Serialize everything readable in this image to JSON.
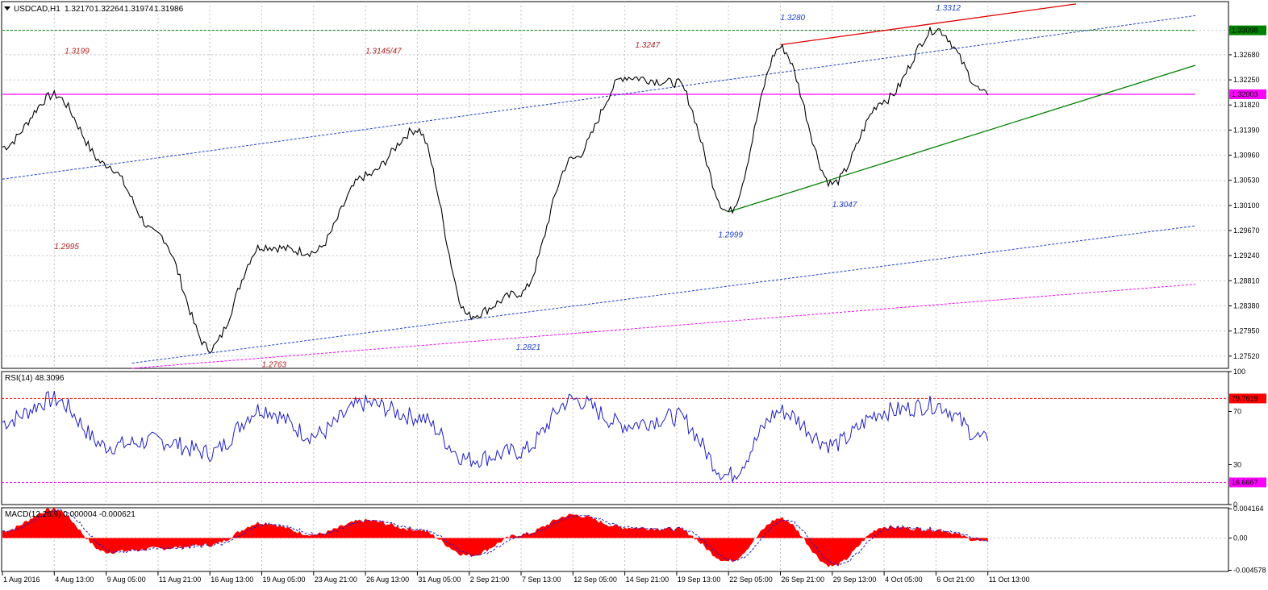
{
  "chart_data": [
    {
      "type": "line",
      "title": "USDCAD,H1  1.32170 1.32264 1.31974 1.31986",
      "symbol": "USDCAD,H1",
      "ohlc": [
        "1.32170",
        "1.32264",
        "1.31974",
        "1.31986"
      ],
      "ylim": [
        1.2731,
        1.3359
      ],
      "y_ticks": [
        "1.33098",
        "1.32680",
        "1.32250",
        "1.31820",
        "1.31390",
        "1.30960",
        "1.30530",
        "1.30100",
        "1.29670",
        "1.29240",
        "1.28810",
        "1.28380",
        "1.27950",
        "1.27520"
      ],
      "current_price": "1.32003",
      "marked_level": "1.33098",
      "grid": true,
      "x_dates": [
        "1 Aug 2016",
        "4 Aug 13:00",
        "9 Aug 05:00",
        "11 Aug 21:00",
        "16 Aug 13:00",
        "19 Aug 05:00",
        "23 Aug 21:00",
        "26 Aug 13:00",
        "31 Aug 05:00",
        "2 Sep 21:00",
        "7 Sep 13:00",
        "12 Sep 05:00",
        "14 Sep 21:00",
        "19 Sep 13:00",
        "22 Sep 05:00",
        "26 Sep 21:00",
        "29 Sep 13:00",
        "4 Oct 05:00",
        "6 Oct 21:00",
        "11 Oct 13:00"
      ],
      "price_series": {
        "x": [
          0,
          1,
          2,
          3,
          4,
          5,
          6,
          7,
          8,
          9,
          10,
          11,
          12,
          13,
          14,
          15,
          16,
          17,
          18,
          19
        ],
        "values": [
          1.311,
          1.3199,
          1.308,
          1.296,
          1.2765,
          1.294,
          1.293,
          1.306,
          1.314,
          1.2821,
          1.286,
          1.309,
          1.323,
          1.322,
          1.2999,
          1.328,
          1.3047,
          1.319,
          1.3312,
          1.3199
        ]
      },
      "annotations": [
        {
          "text": "1.3199",
          "x": 1.2,
          "y": 1.327,
          "color": "#b22222",
          "italic": false
        },
        {
          "text": "1.3145/47",
          "x": 7.0,
          "y": 1.327,
          "color": "#b22222",
          "italic": false
        },
        {
          "text": "1.3247",
          "x": 12.2,
          "y": 1.328,
          "color": "#b22222",
          "italic": true
        },
        {
          "text": "1.3280",
          "x": 15.0,
          "y": 1.3327,
          "color": "#1e3fc8",
          "italic": true
        },
        {
          "text": "1.3312",
          "x": 18.0,
          "y": 1.3344,
          "color": "#1e3fc8",
          "italic": true
        },
        {
          "text": "1.2995",
          "x": 1.0,
          "y": 1.2935,
          "color": "#b22222",
          "italic": false
        },
        {
          "text": "1.2999",
          "x": 13.8,
          "y": 1.2955,
          "color": "#1e3fc8",
          "italic": false
        },
        {
          "text": "1.3047",
          "x": 16.0,
          "y": 1.3007,
          "color": "#1e3fc8",
          "italic": false
        },
        {
          "text": "1.2821",
          "x": 9.9,
          "y": 1.2763,
          "color": "#1e3fc8",
          "italic": true
        },
        {
          "text": "1.2763",
          "x": 5.0,
          "y": 1.2733,
          "color": "#b22222",
          "italic": true
        }
      ],
      "lines": [
        {
          "name": "horizontal-support",
          "points": [
            [
              0,
              1.32003
            ],
            [
              23,
              1.32003
            ]
          ],
          "color": "#ff00ff",
          "style": "solid"
        },
        {
          "name": "resistance-level",
          "points": [
            [
              0,
              1.33098
            ],
            [
              23,
              1.33098
            ]
          ],
          "color": "#008000",
          "style": "dotted"
        },
        {
          "name": "channel-upper",
          "points": [
            [
              0,
              1.3055
            ],
            [
              23,
              1.3335
            ]
          ],
          "color": "#1e3fc8",
          "style": "dotted"
        },
        {
          "name": "channel-lower",
          "points": [
            [
              2.5,
              1.274
            ],
            [
              23,
              1.2975
            ]
          ],
          "color": "#1e3fc8",
          "style": "dotted"
        },
        {
          "name": "magenta-lower",
          "points": [
            [
              2.5,
              1.2731
            ],
            [
              23,
              1.2875
            ]
          ],
          "color": "#ff00ff",
          "style": "dotted"
        },
        {
          "name": "red-upper-trend",
          "points": [
            [
              15.0,
              1.3285
            ],
            [
              20.7,
              1.3355
            ]
          ],
          "color": "#e00000",
          "style": "solid"
        },
        {
          "name": "green-support-trend",
          "points": [
            [
              14.0,
              1.2999
            ],
            [
              23,
              1.325
            ]
          ],
          "color": "#008000",
          "style": "solid"
        }
      ]
    },
    {
      "type": "line",
      "title": "RSI(14) 48.3096",
      "ylim": [
        0,
        100
      ],
      "y_ticks": [
        "100",
        "70",
        "30",
        "0"
      ],
      "levels": [
        "79.7619",
        "16.6667"
      ],
      "series": [
        {
          "x": [
            0,
            1,
            2,
            3,
            4,
            5,
            6,
            7,
            8,
            9,
            10,
            11,
            12,
            13,
            14,
            15,
            16,
            17,
            18,
            19
          ],
          "values": [
            62,
            79,
            44,
            48,
            39,
            72,
            52,
            76,
            66,
            34,
            40,
            79,
            60,
            66,
            22,
            70,
            45,
            70,
            75,
            48
          ]
        }
      ]
    },
    {
      "type": "area",
      "title": "MACD(12,26,9) 0.000004 -0.000621",
      "ylim": [
        -0.00475,
        0.0043
      ],
      "y_ticks": [
        "0.004164",
        "0.00",
        "-0.004578"
      ],
      "series": [
        {
          "x": [
            0,
            1,
            2,
            3,
            4,
            5,
            6,
            7,
            8,
            9,
            10,
            11,
            12,
            13,
            14,
            15,
            16,
            17,
            18,
            19
          ],
          "values": [
            0.001,
            0.0041,
            -0.002,
            -0.0015,
            -0.001,
            0.0022,
            0.0005,
            0.0025,
            0.0012,
            -0.0025,
            0.0005,
            0.0033,
            0.0015,
            0.0013,
            -0.0033,
            0.0028,
            -0.004,
            0.0016,
            0.0012,
            -0.0006
          ]
        }
      ]
    }
  ]
}
